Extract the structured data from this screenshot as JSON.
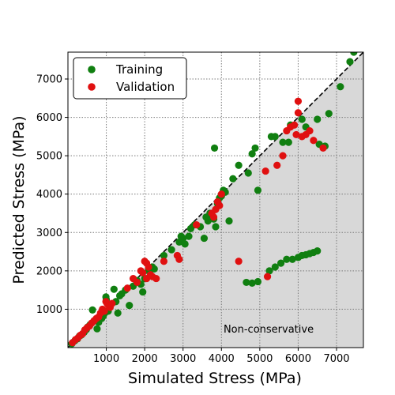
{
  "chart_data": {
    "type": "scatter",
    "xlabel": "Simulated Stress (MPa)",
    "ylabel": "Predicted Stress (MPa)",
    "xlim": [
      0,
      7700
    ],
    "ylim": [
      0,
      7700
    ],
    "xticks": [
      1000,
      2000,
      3000,
      4000,
      5000,
      6000,
      7000
    ],
    "yticks": [
      1000,
      2000,
      3000,
      4000,
      5000,
      6000,
      7000
    ],
    "grid": true,
    "legend_position": "top-left",
    "identity_line": true,
    "shaded_region": "below-identity",
    "annotation": "Non-conservative",
    "series": [
      {
        "name": "Training",
        "color": "#107f10",
        "points": [
          [
            100,
            100
          ],
          [
            180,
            180
          ],
          [
            250,
            230
          ],
          [
            300,
            300
          ],
          [
            350,
            330
          ],
          [
            420,
            400
          ],
          [
            480,
            470
          ],
          [
            520,
            540
          ],
          [
            580,
            600
          ],
          [
            640,
            980
          ],
          [
            700,
            700
          ],
          [
            760,
            490
          ],
          [
            800,
            660
          ],
          [
            850,
            800
          ],
          [
            880,
            760
          ],
          [
            920,
            820
          ],
          [
            960,
            900
          ],
          [
            990,
            1320
          ],
          [
            1000,
            1250
          ],
          [
            1050,
            950
          ],
          [
            1100,
            1100
          ],
          [
            1200,
            1520
          ],
          [
            1250,
            1200
          ],
          [
            1300,
            900
          ],
          [
            1350,
            1350
          ],
          [
            1400,
            1400
          ],
          [
            1500,
            1500
          ],
          [
            1600,
            1100
          ],
          [
            1700,
            1600
          ],
          [
            1800,
            1750
          ],
          [
            1900,
            1650
          ],
          [
            1950,
            1450
          ],
          [
            2000,
            1800
          ],
          [
            2100,
            2000
          ],
          [
            2200,
            2100
          ],
          [
            2250,
            2050
          ],
          [
            2500,
            2400
          ],
          [
            2700,
            2550
          ],
          [
            2900,
            2750
          ],
          [
            2950,
            2900
          ],
          [
            3000,
            2850
          ],
          [
            3050,
            2700
          ],
          [
            3150,
            2900
          ],
          [
            3200,
            3100
          ],
          [
            3300,
            3200
          ],
          [
            3450,
            3150
          ],
          [
            3550,
            2850
          ],
          [
            3600,
            3400
          ],
          [
            3650,
            3300
          ],
          [
            3700,
            3500
          ],
          [
            3750,
            3450
          ],
          [
            3800,
            3350
          ],
          [
            3820,
            5200
          ],
          [
            3850,
            3150
          ],
          [
            3900,
            3750
          ],
          [
            3950,
            3900
          ],
          [
            4000,
            3950
          ],
          [
            4050,
            4100
          ],
          [
            4100,
            4050
          ],
          [
            4200,
            3300
          ],
          [
            4300,
            4400
          ],
          [
            4450,
            4750
          ],
          [
            4700,
            4550
          ],
          [
            4800,
            5050
          ],
          [
            4880,
            5200
          ],
          [
            4950,
            4100
          ],
          [
            5300,
            5500
          ],
          [
            5400,
            5500
          ],
          [
            5600,
            5350
          ],
          [
            5750,
            5350
          ],
          [
            5800,
            5800
          ],
          [
            6100,
            5950
          ],
          [
            6200,
            5750
          ],
          [
            6500,
            5950
          ],
          [
            6550,
            5300
          ],
          [
            6700,
            5250
          ],
          [
            6800,
            6100
          ],
          [
            7100,
            6800
          ],
          [
            7350,
            7450
          ],
          [
            7450,
            7700
          ],
          [
            4650,
            1700
          ],
          [
            4800,
            1680
          ],
          [
            4950,
            1720
          ],
          [
            5250,
            2000
          ],
          [
            5400,
            2100
          ],
          [
            5550,
            2200
          ],
          [
            5700,
            2300
          ],
          [
            5850,
            2300
          ],
          [
            6000,
            2350
          ],
          [
            6100,
            2400
          ],
          [
            6200,
            2420
          ],
          [
            6300,
            2450
          ],
          [
            6400,
            2480
          ],
          [
            6500,
            2520
          ]
        ]
      },
      {
        "name": "Validation",
        "color": "#e01010",
        "points": [
          [
            120,
            130
          ],
          [
            200,
            210
          ],
          [
            260,
            250
          ],
          [
            320,
            320
          ],
          [
            380,
            360
          ],
          [
            440,
            460
          ],
          [
            500,
            520
          ],
          [
            560,
            560
          ],
          [
            620,
            640
          ],
          [
            680,
            700
          ],
          [
            740,
            760
          ],
          [
            800,
            800
          ],
          [
            850,
            900
          ],
          [
            900,
            1000
          ],
          [
            950,
            950
          ],
          [
            990,
            1200
          ],
          [
            1020,
            1150
          ],
          [
            1060,
            1100
          ],
          [
            1100,
            1050
          ],
          [
            1150,
            1150
          ],
          [
            1550,
            1550
          ],
          [
            1700,
            1800
          ],
          [
            1800,
            1700
          ],
          [
            1900,
            2000
          ],
          [
            1950,
            1950
          ],
          [
            2000,
            2250
          ],
          [
            2050,
            2200
          ],
          [
            2050,
            1800
          ],
          [
            2100,
            2100
          ],
          [
            2150,
            1900
          ],
          [
            2200,
            1850
          ],
          [
            2300,
            1800
          ],
          [
            2500,
            2250
          ],
          [
            2850,
            2400
          ],
          [
            2900,
            2300
          ],
          [
            3350,
            3200
          ],
          [
            3750,
            3500
          ],
          [
            3800,
            3400
          ],
          [
            3850,
            3600
          ],
          [
            3900,
            3800
          ],
          [
            3950,
            3700
          ],
          [
            4000,
            4000
          ],
          [
            4450,
            2250
          ],
          [
            5200,
            1850
          ],
          [
            5150,
            4600
          ],
          [
            5450,
            4750
          ],
          [
            5600,
            5000
          ],
          [
            5700,
            5650
          ],
          [
            5800,
            5750
          ],
          [
            5900,
            5800
          ],
          [
            5950,
            5550
          ],
          [
            6000,
            6420
          ],
          [
            6000,
            6120
          ],
          [
            6100,
            5500
          ],
          [
            6200,
            5550
          ],
          [
            6300,
            5650
          ],
          [
            6400,
            5400
          ],
          [
            6650,
            5200
          ]
        ]
      }
    ]
  }
}
